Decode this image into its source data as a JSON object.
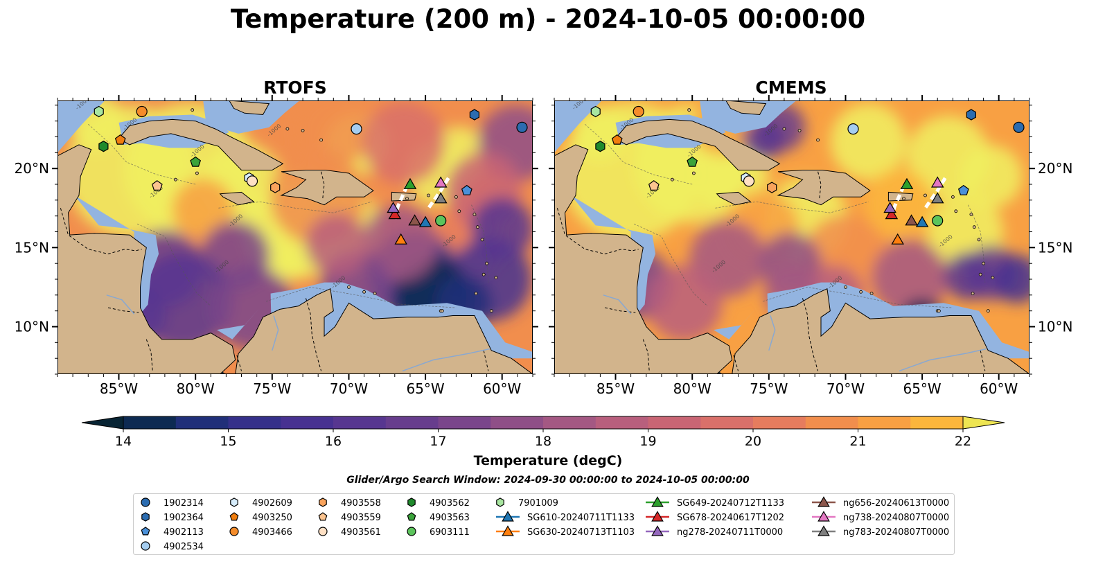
{
  "title": "Temperature (200 m) - 2024-10-05 00:00:00",
  "panels": [
    {
      "title": "RTOFS",
      "id": "rtofs"
    },
    {
      "title": "CMEMS",
      "id": "cmems"
    }
  ],
  "map_extent": {
    "lon_min": -89,
    "lon_max": -58,
    "lat_min": 7,
    "lat_max": 24.3
  },
  "lon_ticks": [
    {
      "value": -85,
      "label": "85°W"
    },
    {
      "value": -80,
      "label": "80°W"
    },
    {
      "value": -75,
      "label": "75°W"
    },
    {
      "value": -70,
      "label": "70°W"
    },
    {
      "value": -65,
      "label": "65°W"
    },
    {
      "value": -60,
      "label": "60°W"
    }
  ],
  "lat_ticks": [
    {
      "value": 20,
      "label": "20°N"
    },
    {
      "value": 15,
      "label": "15°N"
    },
    {
      "value": 10,
      "label": "10°N"
    }
  ],
  "contour_label": "-1000",
  "colorbar": {
    "label": "Temperature (degC)",
    "min": 14,
    "max": 22,
    "step": 0.5,
    "ticks": [
      14,
      15,
      16,
      17,
      18,
      19,
      20,
      21,
      22
    ],
    "colors": [
      "#082434",
      "#0d2a52",
      "#202f79",
      "#35308a",
      "#473191",
      "#573690",
      "#673d8d",
      "#7a458b",
      "#8f4f87",
      "#a45883",
      "#b85f7d",
      "#c96574",
      "#d9706a",
      "#e67c5e",
      "#f18e4d",
      "#f8a043",
      "#fbb63c",
      "#f6cb43",
      "#eee552"
    ],
    "extend": "both"
  },
  "colors": {
    "land": "#d2b48c",
    "shelf": "#93b4e0",
    "warm": "#f0f060",
    "deep": "#0a2a3a"
  },
  "search_window": "Glider/Argo Search Window: 2024-09-30 00:00:00 to 2024-10-05 00:00:00",
  "platforms": [
    {
      "name": "1902314",
      "marker": "circle",
      "color": "#2b6cb0",
      "lon": -58.7,
      "lat": 22.6
    },
    {
      "name": "1902364",
      "marker": "hexagon",
      "color": "#2b6cb0",
      "lon": -61.8,
      "lat": 23.4
    },
    {
      "name": "4902113",
      "marker": "pentagon",
      "color": "#4a90d9",
      "lon": -62.3,
      "lat": 18.6
    },
    {
      "name": "4902534",
      "marker": "circle",
      "color": "#a5cdf0",
      "lon": -69.5,
      "lat": 22.5
    },
    {
      "name": "4902609",
      "marker": "hexagon",
      "color": "#d6ecfb",
      "lon": -76.5,
      "lat": 19.4
    },
    {
      "name": "4903250",
      "marker": "pentagon",
      "color": "#f07d0e",
      "lon": -84.9,
      "lat": 21.8
    },
    {
      "name": "4903466",
      "marker": "circle",
      "color": "#f58c2a",
      "lon": -83.5,
      "lat": 23.6
    },
    {
      "name": "4903558",
      "marker": "hexagon",
      "color": "#f9a35c",
      "lon": -74.8,
      "lat": 18.8
    },
    {
      "name": "4903559",
      "marker": "pentagon",
      "color": "#fcc48f",
      "lon": -82.5,
      "lat": 18.9
    },
    {
      "name": "4903561",
      "marker": "circle",
      "color": "#fee0c4",
      "lon": -76.3,
      "lat": 19.2
    },
    {
      "name": "4903562",
      "marker": "hexagon",
      "color": "#1f8a2c",
      "lon": -86.0,
      "lat": 21.4
    },
    {
      "name": "4903563",
      "marker": "pentagon",
      "color": "#3aa33a",
      "lon": -80.0,
      "lat": 20.4
    },
    {
      "name": "6903111",
      "marker": "circle",
      "color": "#5cc45c",
      "lon": -64.0,
      "lat": 16.7
    },
    {
      "name": "7901009",
      "marker": "hexagon",
      "color": "#a8e6a0",
      "lon": -86.3,
      "lat": 23.6
    },
    {
      "name": "SG610-20240711T1133",
      "marker": "triangle",
      "color": "#1f77b4",
      "lon": -65.0,
      "lat": 16.6
    },
    {
      "name": "SG630-20240713T1103",
      "marker": "triangle",
      "color": "#ff7f0e",
      "lon": -66.6,
      "lat": 15.5
    },
    {
      "name": "SG649-20240712T1133",
      "marker": "triangle",
      "color": "#2ca02c",
      "lon": -66.0,
      "lat": 19.0
    },
    {
      "name": "SG678-20240617T1202",
      "marker": "triangle",
      "color": "#d62728",
      "lon": -67.0,
      "lat": 17.1
    },
    {
      "name": "ng278-20240711T0000",
      "marker": "triangle",
      "color": "#9467bd",
      "lon": -67.1,
      "lat": 17.5
    },
    {
      "name": "ng656-20240613T0000",
      "marker": "triangle",
      "color": "#8c564b",
      "lon": -65.7,
      "lat": 16.7
    },
    {
      "name": "ng738-20240807T0000",
      "marker": "triangle",
      "color": "#e377c2",
      "lon": -64.0,
      "lat": 19.1
    },
    {
      "name": "ng783-20240807T0000",
      "marker": "triangle",
      "color": "#7f7f7f",
      "lon": -64.0,
      "lat": 18.1
    }
  ]
}
